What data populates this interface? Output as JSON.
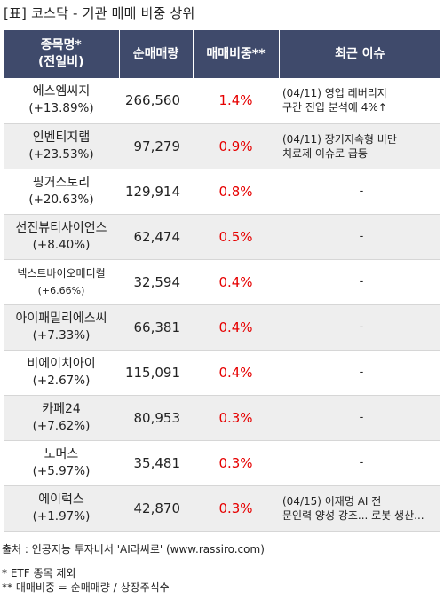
{
  "title": "[표] 코스닥 - 기관 매매 비중 상위",
  "table": {
    "headers": {
      "name_line1": "종목명*",
      "name_line2": "(전일비)",
      "volume": "순매매량",
      "ratio": "매매비중**",
      "issue": "최근 이슈"
    },
    "rows": [
      {
        "name": "에스엠씨지",
        "change": "(+13.89%)",
        "volume": "266,560",
        "ratio": "1.4%",
        "issue": [
          "(04/11) 영업 레버리지",
          "구간 진입 분석에 4%↑"
        ]
      },
      {
        "name": "인벤티지랩",
        "change": "(+23.53%)",
        "volume": "97,279",
        "ratio": "0.9%",
        "issue": [
          "(04/11) 장기지속형 비만",
          "치료제 이슈로 급등"
        ]
      },
      {
        "name": "핑거스토리",
        "change": "(+20.63%)",
        "volume": "129,914",
        "ratio": "0.8%",
        "issue": [
          "-"
        ]
      },
      {
        "name": "선진뷰티사이언스",
        "change": "(+8.40%)",
        "volume": "62,474",
        "ratio": "0.5%",
        "issue": [
          "-"
        ]
      },
      {
        "name": "넥스트바이오메디컬",
        "change": "(+6.66%)",
        "volume": "32,594",
        "ratio": "0.4%",
        "issue": [
          "-"
        ]
      },
      {
        "name": "아이패밀리에스씨",
        "change": "(+7.33%)",
        "volume": "66,381",
        "ratio": "0.4%",
        "issue": [
          "-"
        ]
      },
      {
        "name": "비에이치아이",
        "change": "(+2.67%)",
        "volume": "115,091",
        "ratio": "0.4%",
        "issue": [
          "-"
        ]
      },
      {
        "name": "카페24",
        "change": "(+7.62%)",
        "volume": "80,953",
        "ratio": "0.3%",
        "issue": [
          "-"
        ]
      },
      {
        "name": "노머스",
        "change": "(+5.97%)",
        "volume": "35,481",
        "ratio": "0.3%",
        "issue": [
          "-"
        ]
      },
      {
        "name": "에이럭스",
        "change": "(+1.97%)",
        "volume": "42,870",
        "ratio": "0.3%",
        "issue": [
          "(04/15) 이재명 AI 전",
          "문인력 양성 강조... 로봇 생산..."
        ]
      }
    ]
  },
  "footer": {
    "source": "출처 : 인공지능 투자비서 'AI라씨로' (www.rassiro.com)",
    "note1": "* ETF 종목 제외",
    "note2": "** 매매비중 = 순매매량 / 상장주식수"
  },
  "colors": {
    "header_bg": "#3f4a6b",
    "header_text": "#ffffff",
    "ratio_text": "#e60000",
    "stripe": "#eeeeee"
  }
}
